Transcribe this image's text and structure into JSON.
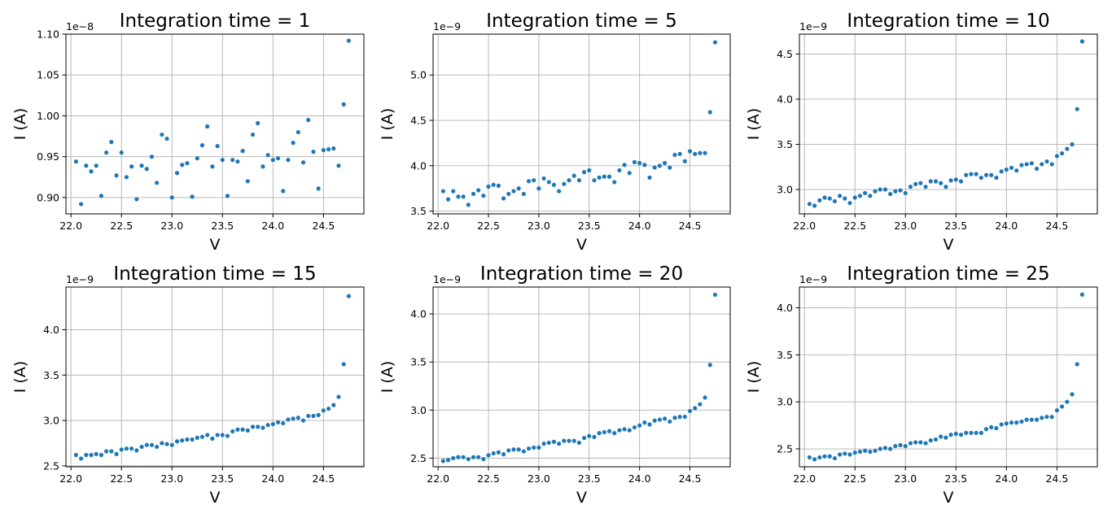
{
  "figure": {
    "background": "#ffffff"
  },
  "chart_data": [
    {
      "type": "scatter",
      "title": "Integration time = 1",
      "xlabel": "V",
      "ylabel": "I (A)",
      "multiplier": "1e−8",
      "xlim": [
        21.95,
        24.9
      ],
      "ylim": [
        0.88,
        1.1
      ],
      "xticks": [
        "22.0",
        "22.5",
        "23.0",
        "23.5",
        "24.0",
        "24.5"
      ],
      "yticks": [
        "0.90",
        "0.95",
        "1.00",
        "1.05",
        "1.10"
      ],
      "grid": true,
      "color": "#1f77b4",
      "series": [
        {
          "x": [
            22.05,
            22.1,
            22.15,
            22.2,
            22.25,
            22.3,
            22.35,
            22.4,
            22.45,
            22.5,
            22.55,
            22.6,
            22.65,
            22.7,
            22.75,
            22.8,
            22.85,
            22.9,
            22.95,
            23.0,
            23.05,
            23.1,
            23.15,
            23.2,
            23.25,
            23.3,
            23.35,
            23.4,
            23.45,
            23.5,
            23.55,
            23.6,
            23.65,
            23.7,
            23.75,
            23.8,
            23.85,
            23.9,
            23.95,
            24.0,
            24.05,
            24.1,
            24.15,
            24.2,
            24.25,
            24.3,
            24.35,
            24.4,
            24.45,
            24.5,
            24.55,
            24.6,
            24.65,
            24.7,
            24.75
          ],
          "y": [
            0.944,
            0.892,
            0.939,
            0.932,
            0.939,
            0.902,
            0.955,
            0.968,
            0.927,
            0.955,
            0.925,
            0.938,
            0.898,
            0.939,
            0.935,
            0.95,
            0.918,
            0.977,
            0.972,
            0.9,
            0.93,
            0.94,
            0.942,
            0.901,
            0.948,
            0.964,
            0.987,
            0.938,
            0.963,
            0.946,
            0.902,
            0.946,
            0.944,
            0.957,
            0.92,
            0.977,
            0.991,
            0.938,
            0.952,
            0.946,
            0.948,
            0.908,
            0.946,
            0.967,
            0.98,
            0.943,
            0.995,
            0.956,
            0.911,
            0.958,
            0.959,
            0.96,
            0.939,
            1.014,
            1.092
          ]
        }
      ]
    },
    {
      "type": "scatter",
      "title": "Integration time = 5",
      "xlabel": "V",
      "ylabel": "I (A)",
      "multiplier": "1e−9",
      "xlim": [
        21.95,
        24.9
      ],
      "ylim": [
        3.47,
        5.45
      ],
      "xticks": [
        "22.0",
        "22.5",
        "23.0",
        "23.5",
        "24.0",
        "24.5"
      ],
      "yticks": [
        "3.5",
        "4.0",
        "4.5",
        "5.0"
      ],
      "grid": true,
      "color": "#1f77b4",
      "series": [
        {
          "x": [
            22.05,
            22.1,
            22.15,
            22.2,
            22.25,
            22.3,
            22.35,
            22.4,
            22.45,
            22.5,
            22.55,
            22.6,
            22.65,
            22.7,
            22.75,
            22.8,
            22.85,
            22.9,
            22.95,
            23.0,
            23.05,
            23.1,
            23.15,
            23.2,
            23.25,
            23.3,
            23.35,
            23.4,
            23.45,
            23.5,
            23.55,
            23.6,
            23.65,
            23.7,
            23.75,
            23.8,
            23.85,
            23.9,
            23.95,
            24.0,
            24.05,
            24.1,
            24.15,
            24.2,
            24.25,
            24.3,
            24.35,
            24.4,
            24.45,
            24.5,
            24.55,
            24.6,
            24.65,
            24.7,
            24.75
          ],
          "y": [
            3.72,
            3.63,
            3.72,
            3.66,
            3.66,
            3.57,
            3.69,
            3.73,
            3.67,
            3.77,
            3.79,
            3.78,
            3.64,
            3.69,
            3.72,
            3.75,
            3.69,
            3.83,
            3.84,
            3.75,
            3.86,
            3.82,
            3.79,
            3.72,
            3.8,
            3.84,
            3.89,
            3.84,
            3.93,
            3.95,
            3.84,
            3.87,
            3.88,
            3.88,
            3.82,
            3.95,
            4.01,
            3.92,
            4.04,
            4.03,
            4.01,
            3.87,
            3.98,
            4.0,
            4.03,
            3.98,
            4.12,
            4.13,
            4.05,
            4.16,
            4.13,
            4.14,
            4.14,
            4.59,
            5.36
          ]
        }
      ]
    },
    {
      "type": "scatter",
      "title": "Integration time = 10",
      "xlabel": "V",
      "ylabel": "I (A)",
      "multiplier": "1e−9",
      "xlim": [
        21.95,
        24.9
      ],
      "ylim": [
        2.73,
        4.72
      ],
      "xticks": [
        "22.0",
        "22.5",
        "23.0",
        "23.5",
        "24.0",
        "24.5"
      ],
      "yticks": [
        "3.0",
        "3.5",
        "4.0",
        "4.5"
      ],
      "grid": true,
      "color": "#1f77b4",
      "series": [
        {
          "x": [
            22.05,
            22.1,
            22.15,
            22.2,
            22.25,
            22.3,
            22.35,
            22.4,
            22.45,
            22.5,
            22.55,
            22.6,
            22.65,
            22.7,
            22.75,
            22.8,
            22.85,
            22.9,
            22.95,
            23.0,
            23.05,
            23.1,
            23.15,
            23.2,
            23.25,
            23.3,
            23.35,
            23.4,
            23.45,
            23.5,
            23.55,
            23.6,
            23.65,
            23.7,
            23.75,
            23.8,
            23.85,
            23.9,
            23.95,
            24.0,
            24.05,
            24.1,
            24.15,
            24.2,
            24.25,
            24.3,
            24.35,
            24.4,
            24.45,
            24.5,
            24.55,
            24.6,
            24.65,
            24.7,
            24.75
          ],
          "y": [
            2.84,
            2.82,
            2.88,
            2.91,
            2.9,
            2.87,
            2.93,
            2.9,
            2.85,
            2.91,
            2.93,
            2.96,
            2.93,
            2.98,
            3.0,
            3.0,
            2.95,
            2.98,
            2.99,
            2.96,
            3.03,
            3.06,
            3.07,
            3.03,
            3.09,
            3.09,
            3.07,
            3.03,
            3.1,
            3.11,
            3.09,
            3.16,
            3.17,
            3.17,
            3.13,
            3.16,
            3.16,
            3.13,
            3.2,
            3.22,
            3.24,
            3.21,
            3.27,
            3.28,
            3.29,
            3.23,
            3.28,
            3.31,
            3.28,
            3.37,
            3.4,
            3.45,
            3.5,
            3.89,
            4.64
          ]
        }
      ]
    },
    {
      "type": "scatter",
      "title": "Integration time = 15",
      "xlabel": "V",
      "ylabel": "I (A)",
      "multiplier": "1e−9",
      "xlim": [
        21.95,
        24.9
      ],
      "ylim": [
        2.49,
        4.47
      ],
      "xticks": [
        "22.0",
        "22.5",
        "23.0",
        "23.5",
        "24.0",
        "24.5"
      ],
      "yticks": [
        "2.5",
        "3.0",
        "3.5",
        "4.0"
      ],
      "grid": true,
      "color": "#1f77b4",
      "series": [
        {
          "x": [
            22.05,
            22.1,
            22.15,
            22.2,
            22.25,
            22.3,
            22.35,
            22.4,
            22.45,
            22.5,
            22.55,
            22.6,
            22.65,
            22.7,
            22.75,
            22.8,
            22.85,
            22.9,
            22.95,
            23.0,
            23.05,
            23.1,
            23.15,
            23.2,
            23.25,
            23.3,
            23.35,
            23.4,
            23.45,
            23.5,
            23.55,
            23.6,
            23.65,
            23.7,
            23.75,
            23.8,
            23.85,
            23.9,
            23.95,
            24.0,
            24.05,
            24.1,
            24.15,
            24.2,
            24.25,
            24.3,
            24.35,
            24.4,
            24.45,
            24.5,
            24.55,
            24.6,
            24.65,
            24.7,
            24.75
          ],
          "y": [
            2.62,
            2.58,
            2.62,
            2.62,
            2.63,
            2.62,
            2.66,
            2.66,
            2.63,
            2.68,
            2.69,
            2.69,
            2.67,
            2.71,
            2.73,
            2.73,
            2.71,
            2.75,
            2.74,
            2.73,
            2.77,
            2.78,
            2.79,
            2.79,
            2.81,
            2.82,
            2.84,
            2.8,
            2.84,
            2.84,
            2.83,
            2.88,
            2.9,
            2.9,
            2.89,
            2.93,
            2.93,
            2.92,
            2.95,
            2.96,
            2.98,
            2.97,
            3.01,
            3.02,
            3.03,
            3.0,
            3.05,
            3.05,
            3.06,
            3.11,
            3.13,
            3.17,
            3.26,
            3.62,
            4.37
          ]
        }
      ]
    },
    {
      "type": "scatter",
      "title": "Integration time = 20",
      "xlabel": "V",
      "ylabel": "I (A)",
      "multiplier": "1e−9",
      "xlim": [
        21.95,
        24.9
      ],
      "ylim": [
        2.41,
        4.28
      ],
      "xticks": [
        "22.0",
        "22.5",
        "23.0",
        "23.5",
        "24.0",
        "24.5"
      ],
      "yticks": [
        "2.5",
        "3.0",
        "3.5",
        "4.0"
      ],
      "grid": true,
      "color": "#1f77b4",
      "series": [
        {
          "x": [
            22.05,
            22.1,
            22.15,
            22.2,
            22.25,
            22.3,
            22.35,
            22.4,
            22.45,
            22.5,
            22.55,
            22.6,
            22.65,
            22.7,
            22.75,
            22.8,
            22.85,
            22.9,
            22.95,
            23.0,
            23.05,
            23.1,
            23.15,
            23.2,
            23.25,
            23.3,
            23.35,
            23.4,
            23.45,
            23.5,
            23.55,
            23.6,
            23.65,
            23.7,
            23.75,
            23.8,
            23.85,
            23.9,
            23.95,
            24.0,
            24.05,
            24.1,
            24.15,
            24.2,
            24.25,
            24.3,
            24.35,
            24.4,
            24.45,
            24.5,
            24.55,
            24.6,
            24.65,
            24.7,
            24.75
          ],
          "y": [
            2.47,
            2.48,
            2.5,
            2.51,
            2.51,
            2.49,
            2.51,
            2.51,
            2.49,
            2.53,
            2.55,
            2.56,
            2.54,
            2.58,
            2.59,
            2.59,
            2.57,
            2.6,
            2.61,
            2.61,
            2.65,
            2.66,
            2.67,
            2.65,
            2.68,
            2.68,
            2.68,
            2.66,
            2.71,
            2.73,
            2.72,
            2.76,
            2.77,
            2.78,
            2.76,
            2.79,
            2.8,
            2.79,
            2.82,
            2.84,
            2.87,
            2.85,
            2.89,
            2.9,
            2.91,
            2.88,
            2.92,
            2.93,
            2.93,
            2.99,
            3.02,
            3.06,
            3.13,
            3.47,
            4.2
          ]
        }
      ]
    },
    {
      "type": "scatter",
      "title": "Integration time = 25",
      "xlabel": "V",
      "ylabel": "I (A)",
      "multiplier": "1e−9",
      "xlim": [
        21.95,
        24.9
      ],
      "ylim": [
        2.31,
        4.22
      ],
      "xticks": [
        "22.0",
        "22.5",
        "23.0",
        "23.5",
        "24.0",
        "24.5"
      ],
      "yticks": [
        "2.5",
        "3.0",
        "3.5",
        "4.0"
      ],
      "grid": true,
      "color": "#1f77b4",
      "series": [
        {
          "x": [
            22.05,
            22.1,
            22.15,
            22.2,
            22.25,
            22.3,
            22.35,
            22.4,
            22.45,
            22.5,
            22.55,
            22.6,
            22.65,
            22.7,
            22.75,
            22.8,
            22.85,
            22.9,
            22.95,
            23.0,
            23.05,
            23.1,
            23.15,
            23.2,
            23.25,
            23.3,
            23.35,
            23.4,
            23.45,
            23.5,
            23.55,
            23.6,
            23.65,
            23.7,
            23.75,
            23.8,
            23.85,
            23.9,
            23.95,
            24.0,
            24.05,
            24.1,
            24.15,
            24.2,
            24.25,
            24.3,
            24.35,
            24.4,
            24.45,
            24.5,
            24.55,
            24.6,
            24.65,
            24.7,
            24.75
          ],
          "y": [
            2.41,
            2.39,
            2.41,
            2.42,
            2.42,
            2.4,
            2.44,
            2.45,
            2.44,
            2.46,
            2.47,
            2.48,
            2.47,
            2.48,
            2.5,
            2.51,
            2.5,
            2.53,
            2.54,
            2.53,
            2.56,
            2.57,
            2.57,
            2.56,
            2.59,
            2.6,
            2.63,
            2.62,
            2.65,
            2.66,
            2.65,
            2.67,
            2.67,
            2.67,
            2.67,
            2.71,
            2.73,
            2.72,
            2.76,
            2.77,
            2.78,
            2.78,
            2.79,
            2.81,
            2.81,
            2.81,
            2.83,
            2.84,
            2.84,
            2.91,
            2.95,
            3.0,
            3.08,
            3.4,
            4.14
          ]
        }
      ]
    }
  ]
}
